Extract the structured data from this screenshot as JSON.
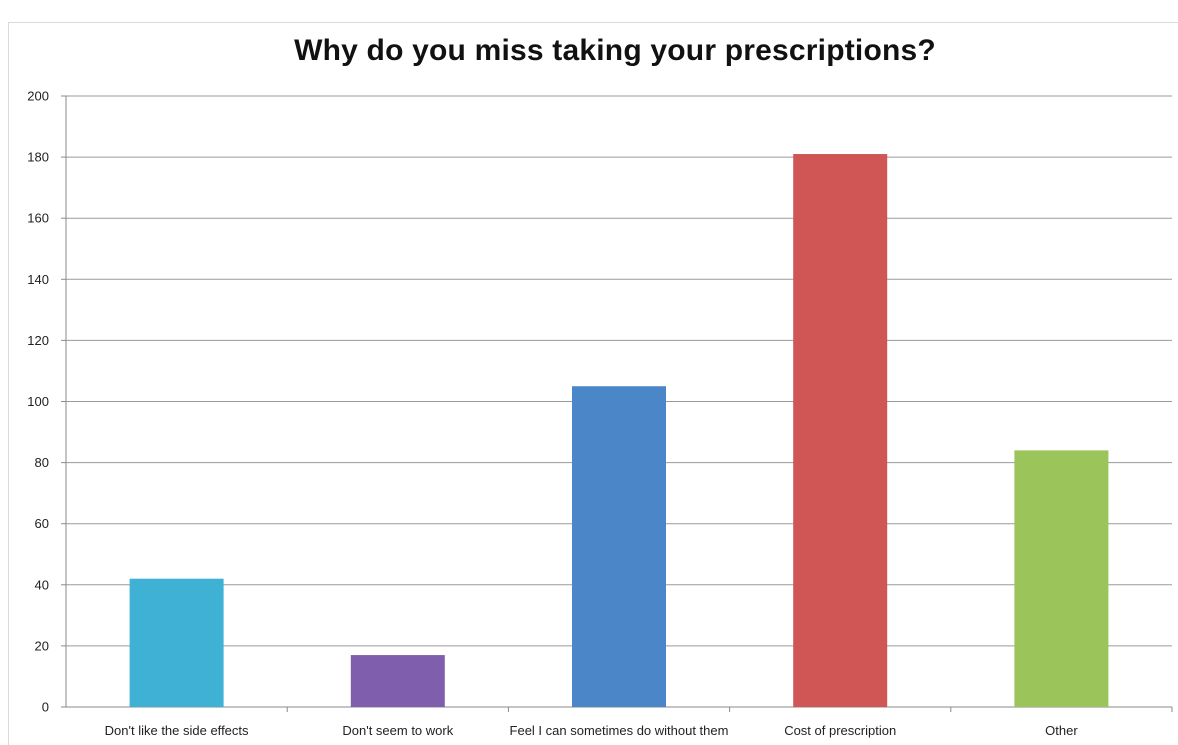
{
  "chart_data": {
    "type": "bar",
    "title": "Why do you miss taking your prescriptions?",
    "xlabel": "",
    "ylabel": "",
    "ylim": [
      0,
      200
    ],
    "yticks": [
      0,
      20,
      40,
      60,
      80,
      100,
      120,
      140,
      160,
      180,
      200
    ],
    "grid": true,
    "legend": "none",
    "categories": [
      "Don't like the side effects",
      "Don't seem to work",
      "Feel I can sometimes do without them",
      "Cost of prescription",
      "Other"
    ],
    "values": [
      42,
      17,
      105,
      181,
      84
    ],
    "colors": [
      "#3fb1d4",
      "#7f5fad",
      "#4a86c8",
      "#d05555",
      "#9bc45a"
    ]
  }
}
